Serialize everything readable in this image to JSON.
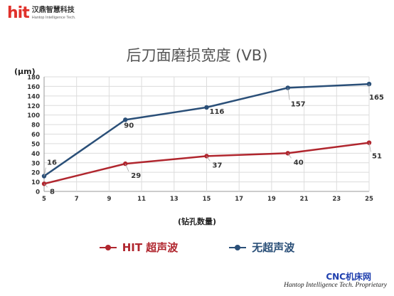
{
  "header": {
    "logo_mark": "hit",
    "logo_cn": "汉鼎智慧科技",
    "logo_en": "Hantop Intelligence Tech."
  },
  "chart_data": {
    "type": "line",
    "title": "后刀面磨损宽度 (VB)",
    "ylabel": "(μm)",
    "xlabel": "(钻孔数量)",
    "x_ticks": [
      5,
      7,
      9,
      11,
      13,
      15,
      17,
      19,
      21,
      23,
      25
    ],
    "y_ticks": [
      0,
      10,
      20,
      30,
      40,
      50,
      60,
      80,
      100,
      120,
      140,
      160,
      180
    ],
    "xlim": [
      5,
      25
    ],
    "grid": true,
    "legend_position": "bottom",
    "series": [
      {
        "name": "HIT 超声波",
        "color": "#b0262e",
        "x": [
          5,
          10,
          15,
          20,
          25
        ],
        "y": [
          8,
          29,
          37,
          40,
          51
        ],
        "labels": [
          "8",
          "29",
          "37",
          "40",
          "51"
        ]
      },
      {
        "name": "无超声波",
        "color": "#2a4f78",
        "x": [
          5,
          10,
          15,
          20,
          25
        ],
        "y": [
          16,
          90,
          116,
          157,
          165
        ],
        "labels": [
          "16",
          "90",
          "116",
          "157",
          "165"
        ]
      }
    ]
  },
  "footer": {
    "brand": "CNC机床网",
    "note": "Hantop Intelligence Tech. Proprietary"
  }
}
